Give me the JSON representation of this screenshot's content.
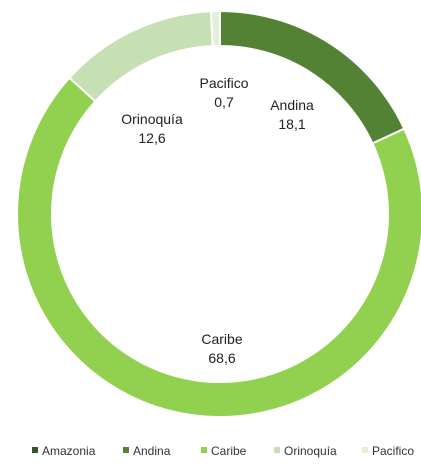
{
  "chart_data": {
    "type": "pie",
    "subtype": "donut",
    "categories": [
      "Amazonia",
      "Andina",
      "Caribe",
      "Orinoquía",
      "Pacifico"
    ],
    "values": [
      0.0,
      18.1,
      68.6,
      12.6,
      0.7
    ],
    "labels": [
      {
        "name": "",
        "value": ""
      },
      {
        "name": "Andina",
        "value": "18,1"
      },
      {
        "name": "Caribe",
        "value": "68,6"
      },
      {
        "name": "Orinoquía",
        "value": "12,6"
      },
      {
        "name": "Pacifico",
        "value": "0,7"
      }
    ],
    "colors": [
      "#375623",
      "#548235",
      "#92d050",
      "#c6e0b4",
      "#e2efda"
    ],
    "legend": {
      "position": "bottom",
      "entries": [
        "Amazonia",
        "Andina",
        "Caribe",
        "Orinoquía",
        "Pacifico"
      ]
    }
  }
}
